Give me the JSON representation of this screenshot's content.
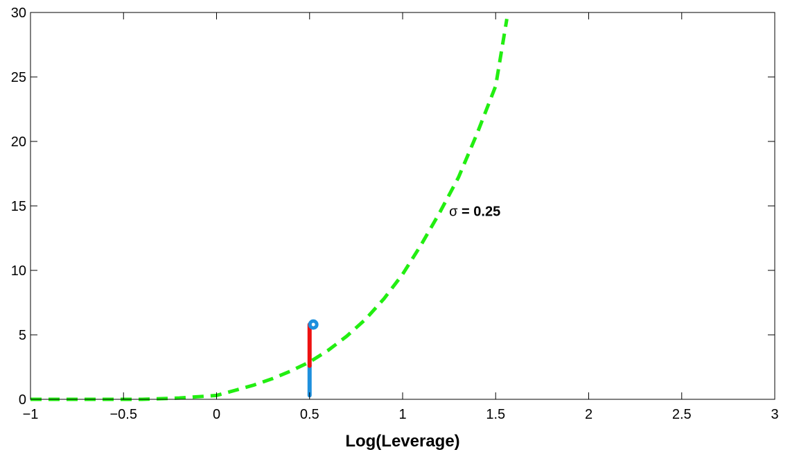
{
  "chart_data": {
    "type": "line",
    "title": "",
    "xlabel": "Log(Leverage)",
    "ylabel": "",
    "xlim": [
      -1,
      3
    ],
    "ylim": [
      0,
      30
    ],
    "grid": false,
    "x_ticks": [
      -1,
      -0.5,
      0,
      0.5,
      1,
      1.5,
      2,
      2.5,
      3
    ],
    "x_tick_labels": [
      "−1",
      "−0.5",
      "0",
      "0.5",
      "1",
      "1.5",
      "2",
      "2.5",
      "3"
    ],
    "y_ticks": [
      0,
      5,
      10,
      15,
      20,
      25,
      30
    ],
    "y_tick_labels": [
      "0",
      "5",
      "10",
      "15",
      "20",
      "25",
      "30"
    ],
    "series": [
      {
        "style": "dashed",
        "color": "#22ee11",
        "x": [
          -1.0,
          -0.8,
          -0.6,
          -0.4,
          -0.2,
          0.0,
          0.1,
          0.2,
          0.3,
          0.4,
          0.5,
          0.6,
          0.7,
          0.8,
          0.9,
          1.0,
          1.1,
          1.2,
          1.3,
          1.4,
          1.5,
          1.56
        ],
        "y": [
          0.0,
          0.0,
          0.0,
          0.0,
          0.1,
          0.3,
          0.7,
          1.1,
          1.6,
          2.2,
          2.9,
          3.8,
          4.9,
          6.2,
          7.8,
          9.7,
          12.0,
          14.5,
          17.2,
          20.6,
          24.3,
          29.5
        ]
      }
    ],
    "segments": [
      {
        "color": "#1e90dd",
        "x": 0.5,
        "y_from": 0.3,
        "y_to": 2.6
      },
      {
        "color": "#ee1111",
        "x": 0.5,
        "y_from": 2.6,
        "y_to": 5.8
      }
    ],
    "markers": [
      {
        "color": "#1e90dd",
        "shape": "circle",
        "x": 0.52,
        "y": 5.8
      }
    ],
    "annotations": [
      {
        "symbol": "σ",
        "text": " = 0.25",
        "x": 1.25,
        "y": 14.6
      }
    ]
  }
}
